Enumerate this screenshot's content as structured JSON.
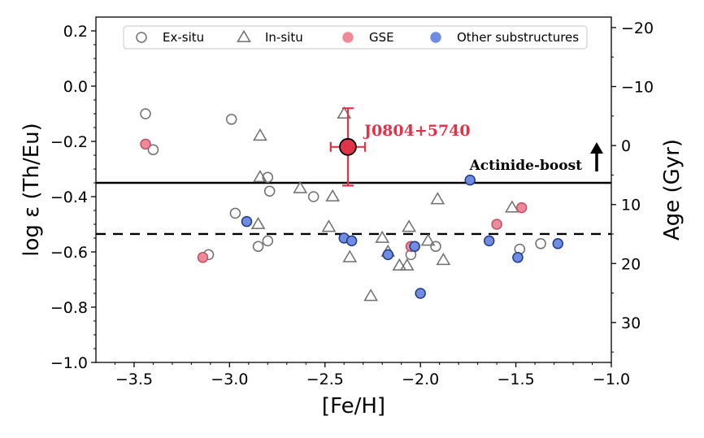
{
  "chart_data": {
    "type": "scatter",
    "xlabel": "[Fe/H]",
    "ylabel": "log ε (Th/Eu)",
    "ylabel_right": "Age (Gyr)",
    "xlim": [
      -3.7,
      -1.0
    ],
    "ylim": [
      -1.0,
      0.25
    ],
    "x_ticks": [
      -3.5,
      -3.0,
      -2.5,
      -2.0,
      -1.5,
      -1.0
    ],
    "y_ticks": [
      -1.0,
      -0.8,
      -0.6,
      -0.4,
      -0.2,
      0.0,
      0.2
    ],
    "x_tick_labels": [
      "−3.5",
      "−3.0",
      "−2.5",
      "−2.0",
      "−1.5",
      "−1.0"
    ],
    "y_tick_labels": [
      "−1.0",
      "−0.8",
      "−0.6",
      "−0.4",
      "−0.2",
      "0.0",
      "0.2"
    ],
    "right_axis": {
      "ticks_age": [
        -20,
        -10,
        0,
        10,
        20,
        30
      ],
      "tick_labels": [
        "−20",
        "−10",
        "0",
        "10",
        "20",
        "30"
      ],
      "logeps_at_age0": -0.215,
      "logeps_per_gyr": -0.02135
    },
    "grid": false,
    "legend": {
      "position": "top",
      "ncol": 4
    },
    "series": [
      {
        "name": "Ex-situ",
        "marker": "circle-open",
        "color": "#6e6e6e",
        "points": [
          [
            -3.44,
            -0.1
          ],
          [
            -3.4,
            -0.23
          ],
          [
            -3.11,
            -0.61
          ],
          [
            -2.99,
            -0.12
          ],
          [
            -2.97,
            -0.46
          ],
          [
            -2.85,
            -0.58
          ],
          [
            -2.8,
            -0.33
          ],
          [
            -2.8,
            -0.56
          ],
          [
            -2.79,
            -0.38
          ],
          [
            -2.56,
            -0.4
          ],
          [
            -2.05,
            -0.61
          ],
          [
            -1.92,
            -0.58
          ],
          [
            -1.48,
            -0.59
          ],
          [
            -1.37,
            -0.57
          ]
        ]
      },
      {
        "name": "In-situ",
        "marker": "triangle-open",
        "color": "#6e6e6e",
        "points": [
          [
            -2.4,
            -0.1
          ],
          [
            -2.84,
            -0.18
          ],
          [
            -2.84,
            -0.33
          ],
          [
            -2.85,
            -0.5
          ],
          [
            -2.63,
            -0.37
          ],
          [
            -2.46,
            -0.4
          ],
          [
            -2.48,
            -0.51
          ],
          [
            -2.37,
            -0.62
          ],
          [
            -2.26,
            -0.76
          ],
          [
            -2.2,
            -0.55
          ],
          [
            -2.17,
            -0.6
          ],
          [
            -2.11,
            -0.65
          ],
          [
            -2.07,
            -0.65
          ],
          [
            -2.06,
            -0.51
          ],
          [
            -1.96,
            -0.56
          ],
          [
            -1.91,
            -0.41
          ],
          [
            -1.88,
            -0.63
          ],
          [
            -1.52,
            -0.44
          ]
        ]
      },
      {
        "name": "GSE",
        "marker": "circle-filled",
        "color": "#ee8a96",
        "edge": "#c0506a",
        "points": [
          [
            -3.44,
            -0.21
          ],
          [
            -3.14,
            -0.62
          ],
          [
            -2.05,
            -0.58
          ],
          [
            -1.6,
            -0.5
          ],
          [
            -1.47,
            -0.44
          ]
        ]
      },
      {
        "name": "Other substructures",
        "marker": "circle-filled",
        "color": "#6f8ce0",
        "edge": "#1f3a8a",
        "points": [
          [
            -2.91,
            -0.49
          ],
          [
            -2.4,
            -0.55
          ],
          [
            -2.36,
            -0.56
          ],
          [
            -2.17,
            -0.61
          ],
          [
            -2.03,
            -0.58
          ],
          [
            -2.0,
            -0.75
          ],
          [
            -1.74,
            -0.34
          ],
          [
            -1.64,
            -0.56
          ],
          [
            -1.49,
            -0.62
          ],
          [
            -1.28,
            -0.57
          ]
        ]
      }
    ],
    "highlight": {
      "label": "J0804+5740",
      "x": -2.38,
      "y": -0.22,
      "x_err": 0.09,
      "y_err_up": 0.14,
      "y_err_down": 0.14,
      "color": "#e0334a"
    },
    "hlines": [
      {
        "y": -0.35,
        "style": "solid",
        "label": "Actinide-boost"
      },
      {
        "y": -0.535,
        "style": "dashed",
        "label": ""
      }
    ],
    "arrow": {
      "direction": "up",
      "color": "#000000"
    }
  }
}
